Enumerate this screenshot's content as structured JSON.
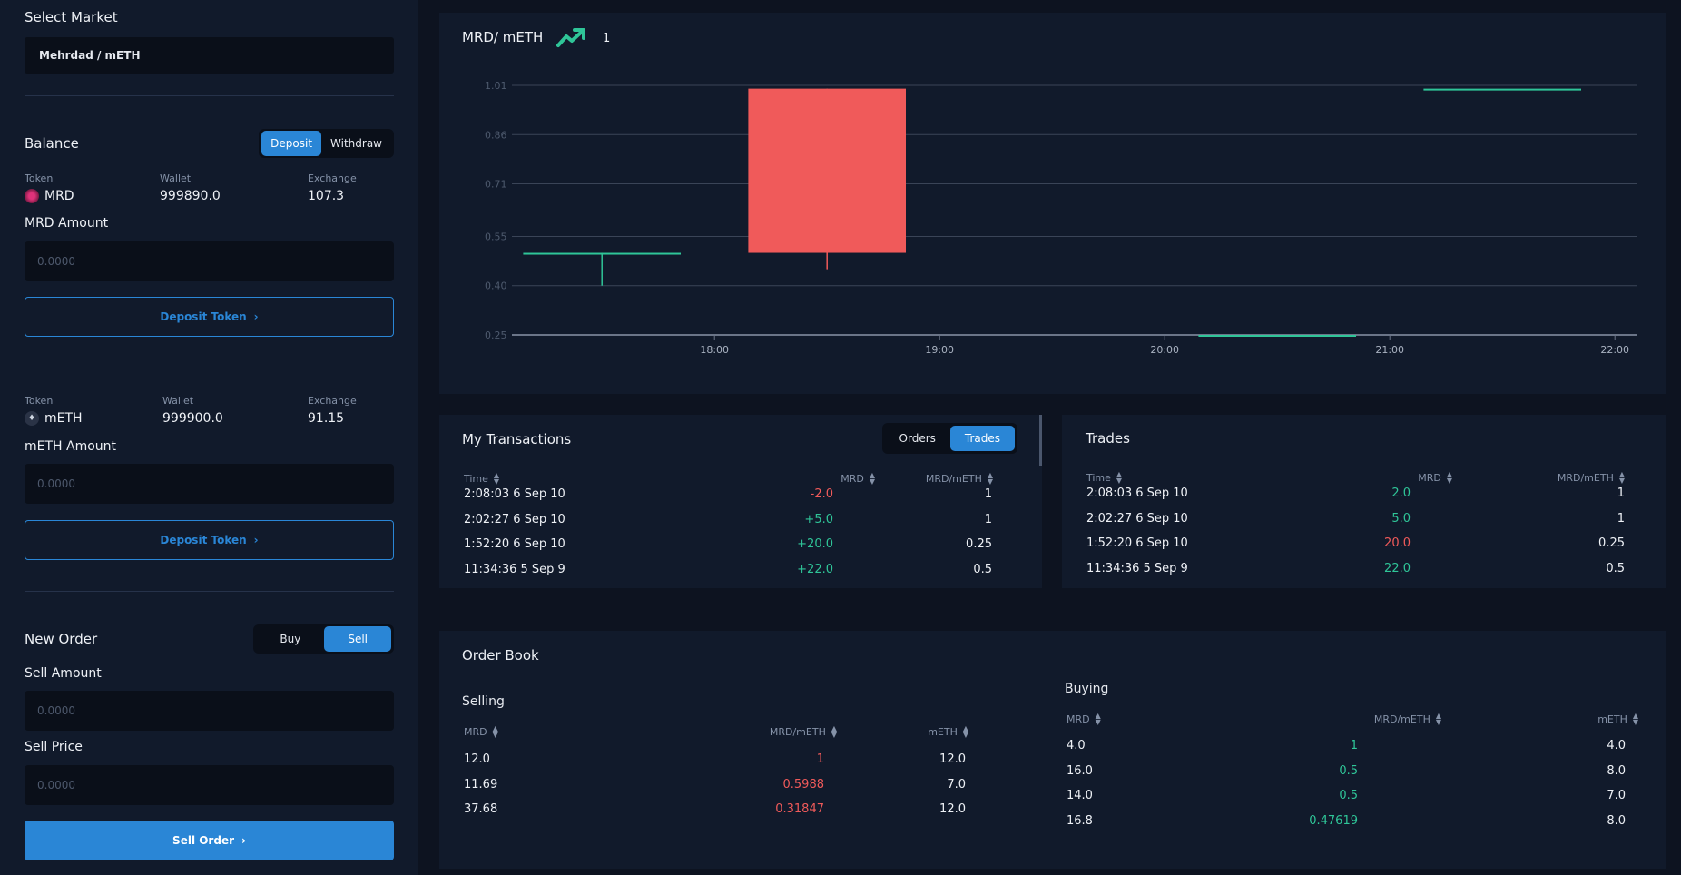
{
  "market": {
    "title": "Select Market",
    "selected": "Mehrdad / mETH"
  },
  "balance": {
    "title": "Balance",
    "tabs": [
      {
        "label": "Deposit",
        "active": true
      },
      {
        "label": "Withdraw",
        "active": false
      }
    ],
    "col_token": "Token",
    "col_wallet": "Wallet",
    "col_exchange": "Exchange",
    "mrd": {
      "token": "MRD",
      "wallet": "999890.0",
      "exchange": "107.3",
      "amount_label": "MRD Amount",
      "placeholder": "0.0000",
      "button": "Deposit Token"
    },
    "meth": {
      "token": "mETH",
      "wallet": "999900.0",
      "exchange": "91.15",
      "amount_label": "mETH Amount",
      "placeholder": "0.0000",
      "button": "Deposit Token"
    }
  },
  "new_order": {
    "title": "New Order",
    "tabs": [
      {
        "label": "Buy",
        "active": false
      },
      {
        "label": "Sell",
        "active": true
      }
    ],
    "amount_label": "Sell Amount",
    "amount_placeholder": "0.0000",
    "price_label": "Sell Price",
    "price_placeholder": "0.0000",
    "button": "Sell Order"
  },
  "chart": {
    "pair": "MRD/ mETH",
    "trend_icon": "trend-up-icon",
    "last_price": "1"
  },
  "chart_data": {
    "type": "candlestick",
    "title": "MRD/ mETH",
    "y_ticks": [
      "1.01",
      "0.86",
      "0.71",
      "0.55",
      "0.40",
      "0.25"
    ],
    "y_tick_values": [
      1.01,
      0.86,
      0.71,
      0.55,
      0.4,
      0.25
    ],
    "x_ticks": [
      "18:00",
      "19:00",
      "20:00",
      "21:00",
      "22:00"
    ],
    "ylim": [
      0.25,
      1.01
    ],
    "x_range_hours": [
      17.1,
      22.1
    ],
    "candles": [
      {
        "start": 17.15,
        "end": 17.85,
        "open": 0.5,
        "close": 0.5,
        "high": 0.5,
        "low": 0.4,
        "color": "#2fc598"
      },
      {
        "start": 18.15,
        "end": 18.85,
        "open": 1.0,
        "close": 0.5,
        "high": 1.0,
        "low": 0.45,
        "color": "#f05a5a"
      },
      {
        "start": 20.15,
        "end": 20.85,
        "open": 0.25,
        "close": 0.25,
        "high": 0.25,
        "low": 0.25,
        "color": "#2fc598"
      },
      {
        "start": 21.15,
        "end": 21.85,
        "open": 1.0,
        "close": 1.0,
        "high": 1.0,
        "low": 1.0,
        "color": "#2fc598"
      }
    ]
  },
  "my_transactions": {
    "title": "My Transactions",
    "tabs": [
      {
        "label": "Orders",
        "active": false
      },
      {
        "label": "Trades",
        "active": true
      }
    ],
    "headers": [
      "Time",
      "MRD",
      "MRD/mETH"
    ],
    "rows": [
      {
        "time": "2:08:03 6 Sep 10",
        "mrd": "-2.0",
        "price": "1",
        "color": "red"
      },
      {
        "time": "2:02:27 6 Sep 10",
        "mrd": "+5.0",
        "price": "1",
        "color": "green"
      },
      {
        "time": "1:52:20 6 Sep 10",
        "mrd": "+20.0",
        "price": "0.25",
        "color": "green"
      },
      {
        "time": "11:34:36 5 Sep 9",
        "mrd": "+22.0",
        "price": "0.5",
        "color": "green"
      }
    ]
  },
  "trades": {
    "title": "Trades",
    "headers": [
      "Time",
      "MRD",
      "MRD/mETH"
    ],
    "rows": [
      {
        "time": "2:08:03 6 Sep 10",
        "mrd": "2.0",
        "price": "1",
        "color": "green"
      },
      {
        "time": "2:02:27 6 Sep 10",
        "mrd": "5.0",
        "price": "1",
        "color": "green"
      },
      {
        "time": "1:52:20 6 Sep 10",
        "mrd": "20.0",
        "price": "0.25",
        "color": "red"
      },
      {
        "time": "11:34:36 5 Sep 9",
        "mrd": "22.0",
        "price": "0.5",
        "color": "green"
      }
    ]
  },
  "order_book": {
    "title": "Order Book",
    "selling": {
      "title": "Selling",
      "headers": [
        "MRD",
        "MRD/mETH",
        "mETH"
      ],
      "rows": [
        {
          "mrd": "12.0",
          "price": "1",
          "meth": "12.0"
        },
        {
          "mrd": "11.69",
          "price": "0.5988",
          "meth": "7.0"
        },
        {
          "mrd": "37.68",
          "price": "0.31847",
          "meth": "12.0"
        }
      ]
    },
    "buying": {
      "title": "Buying",
      "headers": [
        "MRD",
        "MRD/mETH",
        "mETH"
      ],
      "rows": [
        {
          "mrd": "4.0",
          "price": "1",
          "meth": "4.0"
        },
        {
          "mrd": "16.0",
          "price": "0.5",
          "meth": "8.0"
        },
        {
          "mrd": "14.0",
          "price": "0.5",
          "meth": "7.0"
        },
        {
          "mrd": "16.8",
          "price": "0.47619",
          "meth": "8.0"
        }
      ]
    }
  },
  "colors": {
    "accent": "#2a86d6",
    "red": "#f05a5a",
    "green": "#2fc598",
    "panel": "#111a2b",
    "bg": "#0d1320"
  }
}
